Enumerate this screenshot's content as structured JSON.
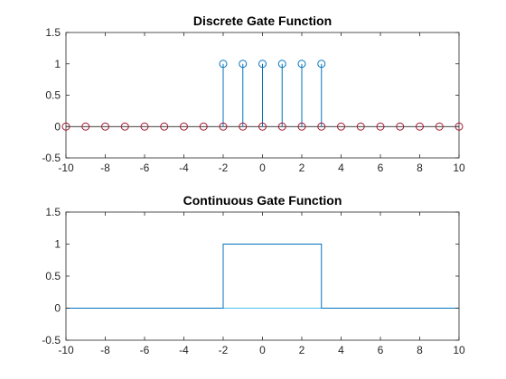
{
  "chart_data": [
    {
      "type": "stem",
      "title": "Discrete Gate Function",
      "xlabel": "",
      "ylabel": "",
      "xlim": [
        -10,
        10
      ],
      "ylim": [
        -0.5,
        1.5
      ],
      "xticks": [
        -10,
        -8,
        -6,
        -4,
        -2,
        0,
        2,
        4,
        6,
        8,
        10
      ],
      "yticks": [
        -0.5,
        0,
        0.5,
        1,
        1.5
      ],
      "xtick_labels": [
        "-10",
        "-8",
        "-6",
        "-4",
        "-2",
        "0",
        "2",
        "4",
        "6",
        "8",
        "10"
      ],
      "ytick_labels": [
        "-0.5",
        "0",
        "0.5",
        "1",
        "1.5"
      ],
      "grid": false,
      "series": [
        {
          "x": [
            -2,
            -1,
            0,
            1,
            2,
            3
          ],
          "y": [
            1,
            1,
            1,
            1,
            1,
            1
          ],
          "color": "#0072BD",
          "marker": "circle-open"
        },
        {
          "x": [
            -10,
            -9,
            -8,
            -7,
            -6,
            -5,
            -4,
            -3,
            -2,
            -1,
            0,
            1,
            2,
            3,
            4,
            5,
            6,
            7,
            8,
            9,
            10
          ],
          "y": [
            0,
            0,
            0,
            0,
            0,
            0,
            0,
            0,
            0,
            0,
            0,
            0,
            0,
            0,
            0,
            0,
            0,
            0,
            0,
            0,
            0
          ],
          "color": "#A2142F",
          "marker": "circle-open"
        }
      ]
    },
    {
      "type": "line",
      "title": "Continuous Gate Function",
      "xlabel": "",
      "ylabel": "",
      "xlim": [
        -10,
        10
      ],
      "ylim": [
        -0.5,
        1.5
      ],
      "xticks": [
        -10,
        -8,
        -6,
        -4,
        -2,
        0,
        2,
        4,
        6,
        8,
        10
      ],
      "yticks": [
        -0.5,
        0,
        0.5,
        1,
        1.5
      ],
      "xtick_labels": [
        "-10",
        "-8",
        "-6",
        "-4",
        "-2",
        "0",
        "2",
        "4",
        "6",
        "8",
        "10"
      ],
      "ytick_labels": [
        "-0.5",
        "0",
        "0.5",
        "1",
        "1.5"
      ],
      "grid": false,
      "series": [
        {
          "x": [
            -10,
            -2,
            -2,
            3,
            3,
            10
          ],
          "y": [
            0,
            0,
            1,
            1,
            0,
            0
          ],
          "color": "#0072BD"
        },
        {
          "x": [
            -10,
            10
          ],
          "y": [
            0,
            0
          ],
          "color": "#4DBEEE"
        }
      ]
    }
  ]
}
